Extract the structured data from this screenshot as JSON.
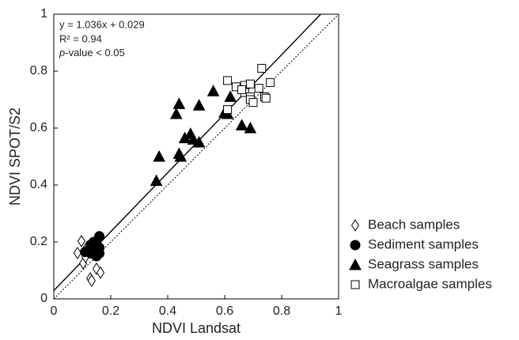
{
  "chart_data": {
    "type": "scatter",
    "x_label": "NDVI Landsat",
    "y_label": "NDVI SPOT/S2",
    "xlim": [
      0,
      1
    ],
    "ylim": [
      0,
      1
    ],
    "xticks": [
      0,
      0.2,
      0.4,
      0.6,
      0.8,
      1
    ],
    "yticks": [
      0,
      0.2,
      0.4,
      0.6,
      0.8,
      1
    ],
    "fit": {
      "slope": 1.036,
      "intercept": 0.029,
      "label": "y = 1.036x + 0.029"
    },
    "annotations": [
      "R² = 0.94"
    ],
    "p_annotation": {
      "italic": "p",
      "text": "-value < 0.05"
    },
    "identity_line": true,
    "series": [
      {
        "name": "Beach samples",
        "marker": "diamond",
        "filled": false,
        "color": "#000000",
        "x": [
          0.097,
          0.083,
          0.103,
          0.128,
          0.133,
          0.15,
          0.164,
          0.111,
          0.139,
          0.117
        ],
        "values": [
          0.203,
          0.161,
          0.125,
          0.072,
          0.064,
          0.106,
          0.092,
          0.147,
          0.167,
          0.183
        ]
      },
      {
        "name": "Sediment samples",
        "marker": "circle",
        "filled": true,
        "color": "#000000",
        "x": [
          0.16,
          0.15,
          0.12,
          0.11,
          0.14,
          0.13,
          0.15,
          0.16,
          0.14,
          0.15,
          0.13,
          0.16,
          0.14
        ],
        "values": [
          0.22,
          0.2,
          0.17,
          0.165,
          0.18,
          0.19,
          0.15,
          0.16,
          0.16,
          0.17,
          0.16,
          0.18,
          0.2
        ]
      },
      {
        "name": "Seagrass samples",
        "marker": "triangle",
        "filled": true,
        "color": "#000000",
        "x": [
          0.56,
          0.51,
          0.43,
          0.44,
          0.62,
          0.6,
          0.61,
          0.66,
          0.69,
          0.48,
          0.46,
          0.49,
          0.51,
          0.44,
          0.445,
          0.37,
          0.36
        ],
        "values": [
          0.73,
          0.68,
          0.65,
          0.685,
          0.71,
          0.655,
          0.65,
          0.61,
          0.6,
          0.58,
          0.565,
          0.56,
          0.55,
          0.51,
          0.5,
          0.5,
          0.415
        ]
      },
      {
        "name": "Macroalgae samples",
        "marker": "square",
        "filled": false,
        "color": "#000000",
        "x": [
          0.73,
          0.61,
          0.64,
          0.67,
          0.69,
          0.76,
          0.72,
          0.67,
          0.69,
          0.69,
          0.7,
          0.74,
          0.745,
          0.61,
          0.66
        ],
        "values": [
          0.81,
          0.767,
          0.745,
          0.75,
          0.755,
          0.76,
          0.74,
          0.725,
          0.71,
          0.7,
          0.69,
          0.71,
          0.705,
          0.665,
          0.735
        ]
      }
    ]
  }
}
